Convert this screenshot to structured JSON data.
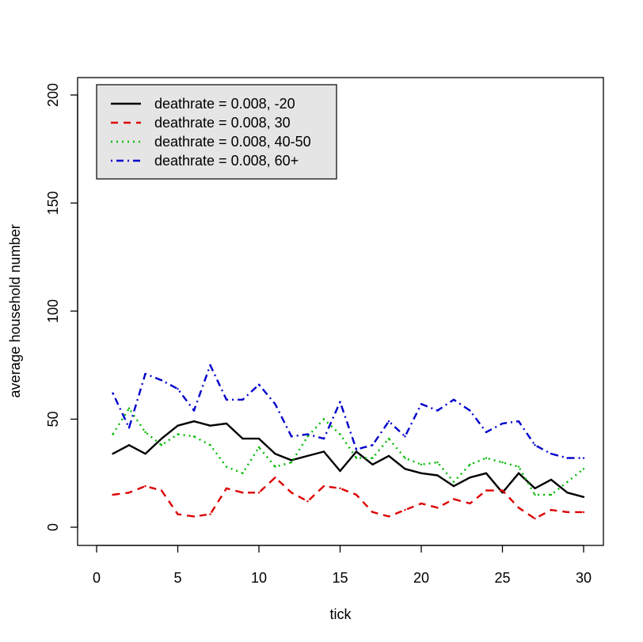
{
  "chart_data": {
    "type": "line",
    "title": "",
    "xlabel": "tick",
    "ylabel": "average household number",
    "xlim": [
      0,
      30
    ],
    "ylim": [
      0,
      200
    ],
    "xticks": [
      "0",
      "5",
      "10",
      "15",
      "20",
      "25",
      "30"
    ],
    "yticks": [
      "0",
      "50",
      "100",
      "150",
      "200"
    ],
    "legend_position": "top-left",
    "grid": false,
    "x": [
      1,
      2,
      3,
      4,
      5,
      6,
      7,
      8,
      9,
      10,
      11,
      12,
      13,
      14,
      15,
      16,
      17,
      18,
      19,
      20,
      21,
      22,
      23,
      24,
      25,
      26,
      27,
      28,
      29,
      30
    ],
    "series": [
      {
        "name": "deathrate = 0.008, -20",
        "color": "#000000",
        "dash": "solid",
        "values": [
          34,
          38,
          34,
          41,
          47,
          49,
          47,
          48,
          41,
          41,
          34,
          31,
          33,
          35,
          26,
          35,
          29,
          33,
          27,
          25,
          24,
          19,
          23,
          25,
          16,
          25,
          18,
          22,
          16,
          14
        ]
      },
      {
        "name": "deathrate = 0.008, 30",
        "color": "#dd0000",
        "dash": "dashed",
        "values": [
          15,
          16,
          19,
          17,
          6,
          5,
          6,
          18,
          16,
          16,
          23,
          16,
          12,
          19,
          18,
          15,
          7,
          5,
          8,
          11,
          9,
          13,
          11,
          17,
          17,
          9,
          4,
          8,
          7,
          7
        ]
      },
      {
        "name": "deathrate = 0.008, 40-50",
        "color": "#00bb00",
        "dash": "dotted",
        "values": [
          43,
          55,
          44,
          38,
          43,
          42,
          38,
          28,
          25,
          37,
          28,
          30,
          42,
          50,
          43,
          32,
          32,
          41,
          32,
          29,
          30,
          21,
          29,
          32,
          30,
          28,
          15,
          15,
          21,
          27
        ]
      },
      {
        "name": "deathrate = 0.008, 60+",
        "color": "#0000cc",
        "dash": "dotdash",
        "values": [
          62,
          46,
          71,
          68,
          64,
          54,
          75,
          59,
          59,
          66,
          57,
          42,
          43,
          41,
          58,
          36,
          38,
          49,
          42,
          57,
          54,
          59,
          54,
          44,
          48,
          49,
          38,
          34,
          32,
          32
        ]
      }
    ]
  }
}
